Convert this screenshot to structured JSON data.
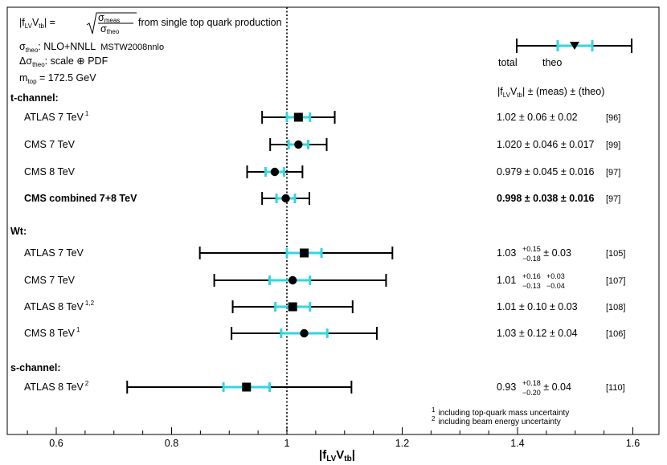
{
  "chart_data": {
    "type": "forest",
    "title": "|f_LV V_tb| = sqrt(σ_meas / σ_theo) from single top quark production",
    "xlabel": "|f_LV V_tb|",
    "xlim": [
      0.55,
      1.65
    ],
    "xticks": [
      0.6,
      0.8,
      1.0,
      1.2,
      1.4,
      1.6
    ],
    "xtick_labels": [
      "0.6",
      "0.8",
      "1",
      "1.2",
      "1.4",
      "1.6"
    ],
    "reference_line": 1.0,
    "colors": {
      "total": "#000000",
      "theo": "#33d6e0"
    },
    "info": {
      "line1_main": "|f",
      "line1_sub1": "LV",
      "line1_mid": "V",
      "line1_sub2": "tb",
      "line1_eq": "| = ",
      "line1_num": "σ",
      "line1_num_sub": "meas",
      "line1_den": "σ",
      "line1_den_sub": "theo",
      "line1_tail": "from single top quark production",
      "line2_sym": "σ",
      "line2_sub": "theo",
      "line2_text": ": NLO+NNLL",
      "line2_small": "MSTW2008nnlo",
      "line3_sym": "Δσ",
      "line3_sub": "theo",
      "line3_text": ": scale ⊕ PDF",
      "line4_sym": "m",
      "line4_sub": "top",
      "line4_text": " = 172.5 GeV"
    },
    "legend": {
      "total": "total",
      "theo": "theo"
    },
    "column_header": {
      "pre": "|f",
      "sub1": "LV",
      "mid": "V",
      "sub2": "tb",
      "post": "| ± (meas) ± (theo)"
    },
    "groups": [
      {
        "name": "t-channel:"
      },
      {
        "name": "Wt:"
      },
      {
        "name": "s-channel:"
      }
    ],
    "measurements": [
      {
        "group": 0,
        "label": "ATLAS 7 TeV",
        "sup": "1",
        "bold": false,
        "marker": "square",
        "value": 1.02,
        "total": [
          0.957,
          1.083
        ],
        "theo": [
          1.0,
          1.04
        ],
        "result_value": "1.02",
        "result_meas": "0.06",
        "result_theo": "0.02",
        "ref": "[96]"
      },
      {
        "group": 0,
        "label": "CMS 7 TeV",
        "sup": "",
        "bold": false,
        "marker": "circle",
        "value": 1.02,
        "total": [
          0.971,
          1.069
        ],
        "theo": [
          1.003,
          1.037
        ],
        "result_value": "1.020",
        "result_meas": "0.046",
        "result_theo": "0.017",
        "ref": "[99]"
      },
      {
        "group": 0,
        "label": "CMS 8 TeV",
        "sup": "",
        "bold": false,
        "marker": "circle",
        "value": 0.979,
        "total": [
          0.931,
          1.027
        ],
        "theo": [
          0.963,
          0.995
        ],
        "result_value": "0.979",
        "result_meas": "0.045",
        "result_theo": "0.016",
        "ref": "[97]"
      },
      {
        "group": 0,
        "label": "CMS combined 7+8 TeV",
        "sup": "",
        "bold": true,
        "marker": "circle",
        "value": 0.998,
        "total": [
          0.957,
          1.039
        ],
        "theo": [
          0.982,
          1.014
        ],
        "result_value": "0.998",
        "result_meas": "0.038",
        "result_theo": "0.016",
        "ref": "[97]"
      },
      {
        "group": 1,
        "label": "ATLAS 7 TeV",
        "sup": "",
        "bold": false,
        "marker": "square",
        "value": 1.03,
        "total": [
          0.849,
          1.183
        ],
        "theo": [
          1.0,
          1.06
        ],
        "result_value": "1.03",
        "result_meas_up": "+0.15",
        "result_meas_dn": "−0.18",
        "result_theo": "0.03",
        "ref": "[105]"
      },
      {
        "group": 1,
        "label": "CMS 7 TeV",
        "sup": "",
        "bold": false,
        "marker": "circle",
        "value": 1.01,
        "total": [
          0.874,
          1.172
        ],
        "theo": [
          0.97,
          1.04
        ],
        "result_value": "1.01",
        "result_meas_up": "+0.16",
        "result_meas_dn": "−0.13",
        "result_theo_up": "+0.03",
        "result_theo_dn": "−0.04",
        "ref": "[107]"
      },
      {
        "group": 1,
        "label": "ATLAS 8 TeV",
        "sup": "1,2",
        "bold": false,
        "marker": "square",
        "value": 1.01,
        "total": [
          0.906,
          1.114
        ],
        "theo": [
          0.98,
          1.04
        ],
        "result_value": "1.01",
        "result_meas": "0.10",
        "result_theo": "0.03",
        "ref": "[108]"
      },
      {
        "group": 1,
        "label": "CMS 8 TeV",
        "sup": "1",
        "bold": false,
        "marker": "circle",
        "value": 1.03,
        "total": [
          0.904,
          1.156
        ],
        "theo": [
          0.99,
          1.07
        ],
        "result_value": "1.03",
        "result_meas": "0.12",
        "result_theo": "0.04",
        "ref": "[106]"
      },
      {
        "group": 2,
        "label": "ATLAS 8 TeV",
        "sup": "2",
        "bold": false,
        "marker": "square",
        "value": 0.93,
        "total": [
          0.723,
          1.112
        ],
        "theo": [
          0.89,
          0.97
        ],
        "result_value": "0.93",
        "result_meas_up": "+0.18",
        "result_meas_dn": "−0.20",
        "result_theo": "0.04",
        "ref": "[110]"
      }
    ],
    "footnotes": [
      {
        "mark": "1",
        "text": "including top-quark mass uncertainty"
      },
      {
        "mark": "2",
        "text": "including beam energy uncertainty"
      }
    ]
  }
}
